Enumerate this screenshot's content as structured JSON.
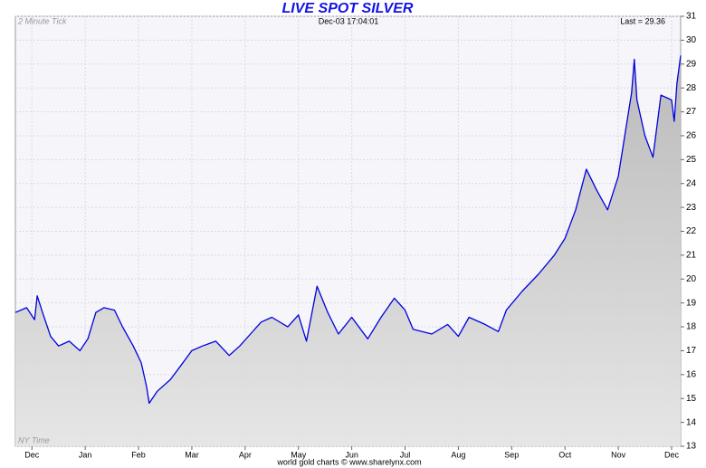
{
  "chart_data": {
    "type": "line",
    "title": "LIVE SPOT SILVER",
    "subtitle": "Dec-03  17:04:01",
    "annotations": [
      "2 Minute Tick",
      "Last = 29.36",
      "NY Time"
    ],
    "footer": "world gold charts © www.sharelynx.com",
    "xlim": [
      -0.31,
      12.17
    ],
    "xticks": [
      {
        "value": 0,
        "label": "Dec"
      },
      {
        "value": 1,
        "label": "Jan"
      },
      {
        "value": 2,
        "label": "Feb"
      },
      {
        "value": 3,
        "label": "Mar"
      },
      {
        "value": 4,
        "label": "Apr"
      },
      {
        "value": 5,
        "label": "May"
      },
      {
        "value": 6,
        "label": "Jun"
      },
      {
        "value": 7,
        "label": "Jul"
      },
      {
        "value": 8,
        "label": "Aug"
      },
      {
        "value": 9,
        "label": "Sep"
      },
      {
        "value": 10,
        "label": "Oct"
      },
      {
        "value": 11,
        "label": "Nov"
      },
      {
        "value": 12,
        "label": "Dec"
      }
    ],
    "ylim": [
      13,
      31
    ],
    "yticks": [
      13,
      14,
      15,
      16,
      17,
      18,
      19,
      20,
      21,
      22,
      23,
      24,
      25,
      26,
      27,
      28,
      29,
      30,
      31
    ],
    "grid": true,
    "x": [
      -0.31,
      -0.1,
      0.05,
      0.1,
      0.2,
      0.35,
      0.5,
      0.7,
      0.9,
      1.05,
      1.2,
      1.35,
      1.55,
      1.7,
      1.9,
      2.05,
      2.15,
      2.2,
      2.35,
      2.6,
      2.8,
      3.0,
      3.2,
      3.45,
      3.7,
      3.9,
      4.1,
      4.3,
      4.5,
      4.8,
      5.0,
      5.15,
      5.35,
      5.55,
      5.75,
      6.0,
      6.3,
      6.55,
      6.8,
      7.0,
      7.15,
      7.5,
      7.8,
      8.0,
      8.2,
      8.5,
      8.75,
      8.9,
      9.2,
      9.5,
      9.8,
      10.0,
      10.2,
      10.4,
      10.6,
      10.8,
      11.0,
      11.25,
      11.3,
      11.35,
      11.5,
      11.65,
      11.8,
      12.0,
      12.05,
      12.1,
      12.17
    ],
    "series": [
      {
        "name": "Silver",
        "color": "#0000e0",
        "values": [
          18.6,
          18.8,
          18.3,
          19.3,
          18.6,
          17.6,
          17.2,
          17.4,
          17.0,
          17.5,
          18.6,
          18.8,
          18.7,
          18.0,
          17.2,
          16.5,
          15.5,
          14.8,
          15.3,
          15.8,
          16.4,
          17.0,
          17.2,
          17.4,
          16.8,
          17.2,
          17.7,
          18.2,
          18.4,
          18.0,
          18.5,
          17.4,
          19.7,
          18.6,
          17.7,
          18.4,
          17.5,
          18.4,
          19.2,
          18.7,
          17.9,
          17.7,
          18.1,
          17.6,
          18.4,
          18.1,
          17.8,
          18.7,
          19.5,
          20.2,
          21.0,
          21.7,
          22.9,
          24.6,
          23.7,
          22.9,
          24.3,
          27.8,
          29.2,
          27.5,
          26.0,
          25.1,
          27.7,
          27.5,
          26.6,
          28.2,
          29.36
        ]
      }
    ]
  }
}
